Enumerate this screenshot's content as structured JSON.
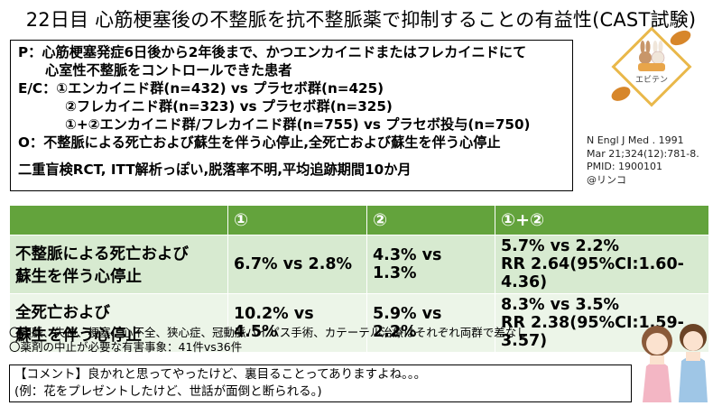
{
  "title": "22日目 心筋梗塞後の不整脈を抗不整脈薬で抑制することの有益性(CAST試験)",
  "pico": {
    "p1": "P：心筋梗塞発症6日後から2年後まで、かつエンカイニドまたはフレカイニドにて",
    "p2": "心室性不整脈をコントロールできた患者",
    "ec1": "E/C：①エンカイニド群(n=432) vs プラセボ群(n=425)",
    "ec2": "②フレカイニド群(n=323) vs プラセボ群(n=325)",
    "ec3": "①+②エンカイニド群/フレカイニド群(n=755) vs プラセボ投与(n=750)",
    "o": "O：不整脈による死亡および蘇生を伴う心停止,全死亡および蘇生を伴う心停止",
    "design": "二重盲検RCT, ITT解析っぽい,脱落率不明,平均追跡期間10か月"
  },
  "logo": {
    "label": "エビテン"
  },
  "citation": {
    "line1": "N Engl J Med . 1991",
    "line2": "Mar 21;324(12):781-8.",
    "line3": "PMID: 1900101",
    "line4": "@リンコ"
  },
  "table": {
    "headers": [
      "",
      "①",
      "②",
      "①+②"
    ],
    "rows": [
      {
        "label1": "不整脈による死亡および",
        "label2": "蘇生を伴う心停止",
        "c1": "6.7% vs 2.8%",
        "c2": "4.3% vs 1.3%",
        "c3a": "5.7% vs 2.2%",
        "c3b": "RR 2.64(95%CI:1.60-4.36)"
      },
      {
        "label1": "全死亡および",
        "label2": "蘇生を伴う心停止",
        "c1": "10.2% vs 4.5%",
        "c2": "5.9% vs 2.2%",
        "c3a": "8.3% vs 3.5%",
        "c3b": "RR 2.38(95%CI:1.59-3.57)"
      }
    ]
  },
  "notes": {
    "n1": "〇頻脈、失神、梗塞、心不全、狭心症、冠動脈バイパス手術、カテーテル治療はそれぞれ両群で差なし",
    "n2": "〇薬剤の中止が必要な有害事象：41件vs36件"
  },
  "comment": {
    "c1": "【コメント】良かれと思ってやったけど、裏目ることってありますよね。。。",
    "c2": "(例：花をプレゼントしたけど、世話が面倒と断られる。)"
  },
  "colors": {
    "header_green": "#63a33c",
    "row1": "#d7ead0",
    "row2": "#ecf5e8"
  }
}
